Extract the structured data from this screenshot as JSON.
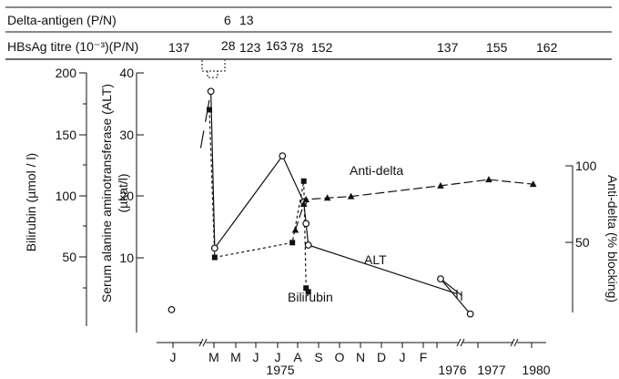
{
  "chart_data": {
    "type": "line",
    "header": {
      "delta_antigen_label": "Delta-antigen (P/N)",
      "delta_antigen_values": [
        "6",
        "13"
      ],
      "hbsag_label": "HBsAg titre (10⁻³)(P/N)",
      "hbsag_values": [
        "137",
        "28",
        "123",
        "163",
        "78",
        "152",
        "137",
        "155",
        "162"
      ]
    },
    "axes": {
      "bilirubin": {
        "label": "Bilirubin (µmol / l)",
        "ticks": [
          "50",
          "100",
          "150",
          "200"
        ],
        "range": [
          0,
          200
        ]
      },
      "alt": {
        "label": "Serum alanine aminotransferase (ALT)",
        "unit": "(µkat/l)",
        "ticks": [
          "10",
          "20",
          "30",
          "40"
        ],
        "range": [
          0,
          40
        ]
      },
      "anti_delta": {
        "label": "Anti-delta (% blocking)",
        "ticks": [
          "50",
          "100"
        ],
        "range": [
          0,
          100
        ]
      },
      "x_months": [
        "J",
        "M",
        "M",
        "J",
        "J",
        "A",
        "S",
        "O",
        "N",
        "D",
        "J",
        "F"
      ],
      "x_year_labels": [
        "1975",
        "1976",
        "1977",
        "1980"
      ]
    },
    "series": [
      {
        "name": "ALT",
        "x": [
          "1975-01-10",
          "1975-03-03",
          "1975-03-08",
          "1975-06-05",
          "1975-07-03",
          "1975-07-06",
          "1975-07-09",
          "1976-02-01",
          "1976-10-01"
        ],
        "y": [
          1.5,
          37,
          11.5,
          26.5,
          19,
          15.5,
          12,
          6.5,
          0.8
        ]
      },
      {
        "name": "Bilirubin",
        "x": [
          "1975-03-01",
          "1975-03-08",
          "1975-06-18",
          "1975-07-03",
          "1975-07-06",
          "1975-07-09"
        ],
        "y": [
          170,
          50,
          62,
          112,
          25,
          22
        ]
      },
      {
        "name": "Anti-delta",
        "x": [
          "1975-06-22",
          "1975-07-03",
          "1975-07-06",
          "1975-08-03",
          "1975-09-03",
          "1976-02-01",
          "1977-06-01",
          "1980-06-01"
        ],
        "y": [
          58,
          75,
          78,
          79,
          80,
          87,
          91,
          88
        ]
      }
    ]
  }
}
